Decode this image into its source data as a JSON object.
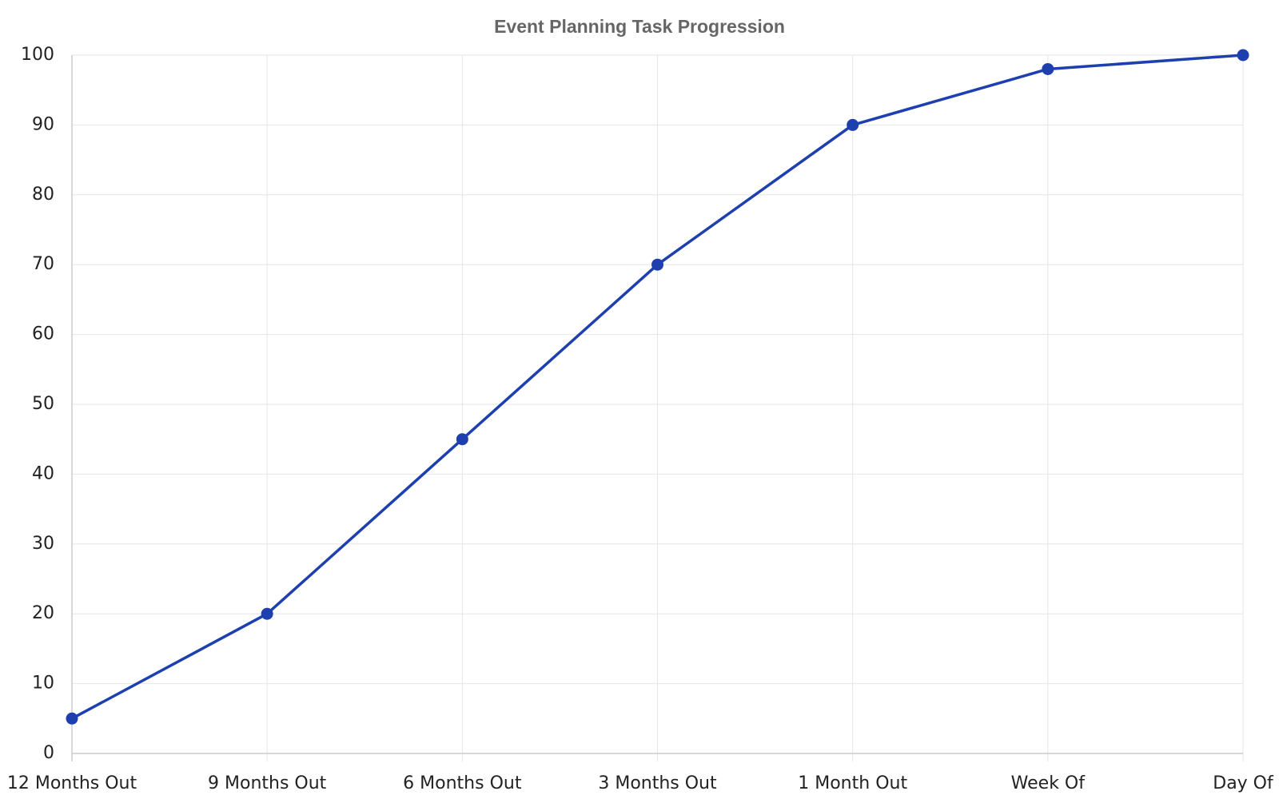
{
  "chart_data": {
    "type": "line",
    "title": "Event Planning Task Progression",
    "categories": [
      "12 Months Out",
      "9 Months Out",
      "6 Months Out",
      "3 Months Out",
      "1 Month Out",
      "Week Of",
      "Day Of"
    ],
    "values": [
      5,
      20,
      45,
      70,
      90,
      98,
      100
    ],
    "color": "#1e40af",
    "ylim": [
      0,
      100
    ],
    "yticks": [
      0,
      10,
      20,
      30,
      40,
      50,
      60,
      70,
      80,
      90,
      100
    ],
    "grid": true
  }
}
